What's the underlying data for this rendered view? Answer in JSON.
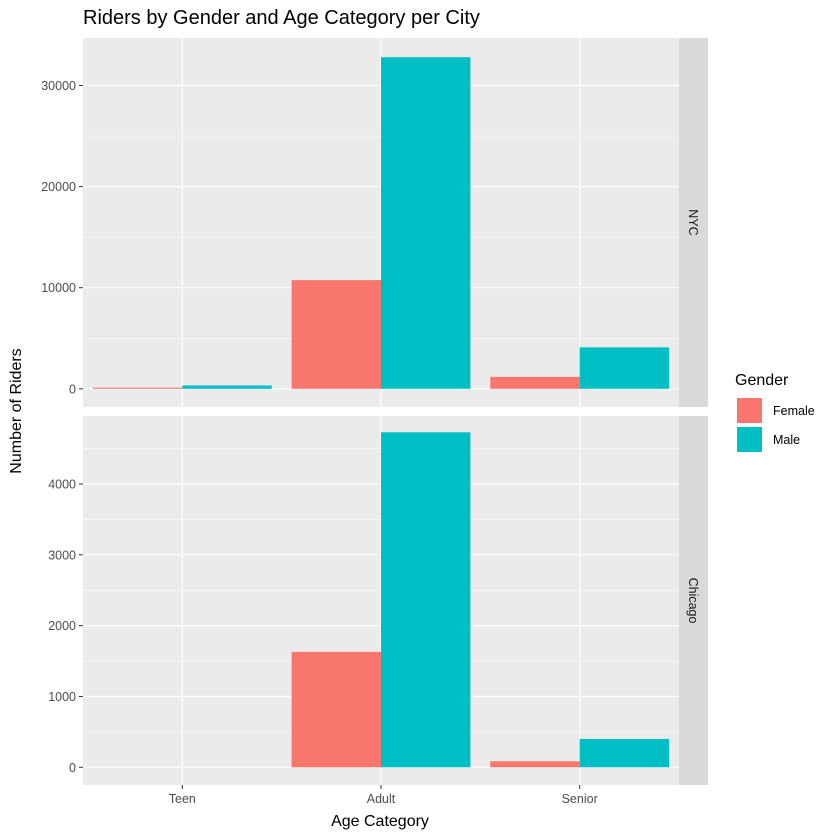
{
  "chart_data": {
    "type": "bar",
    "title": "Riders by Gender and Age Category per City",
    "xlabel": "Age Category",
    "ylabel": "Number of Riders",
    "categories": [
      "Teen",
      "Adult",
      "Senior"
    ],
    "legend": {
      "title": "Gender",
      "position": "right"
    },
    "grid": true,
    "colors": {
      "Female": "#F8766D",
      "Male": "#00BFC4",
      "panel_bg": "#EBEBEB",
      "strip_bg": "#D9D9D9",
      "grid": "#FFFFFF"
    },
    "panels": [
      {
        "strip": "NYC",
        "ylim": [
          -1800,
          34700
        ],
        "yticks": [
          0,
          10000,
          20000,
          30000
        ],
        "series": [
          {
            "name": "Female",
            "values": [
              110,
              10750,
              1180
            ]
          },
          {
            "name": "Male",
            "values": [
              330,
              32800,
              4100
            ]
          }
        ]
      },
      {
        "strip": "Chicago",
        "ylim": [
          -250,
          4960
        ],
        "yticks": [
          0,
          1000,
          2000,
          3000,
          4000
        ],
        "series": [
          {
            "name": "Female",
            "values": [
              0,
              1630,
              85
            ]
          },
          {
            "name": "Male",
            "values": [
              0,
              4730,
              400
            ]
          }
        ]
      }
    ]
  }
}
